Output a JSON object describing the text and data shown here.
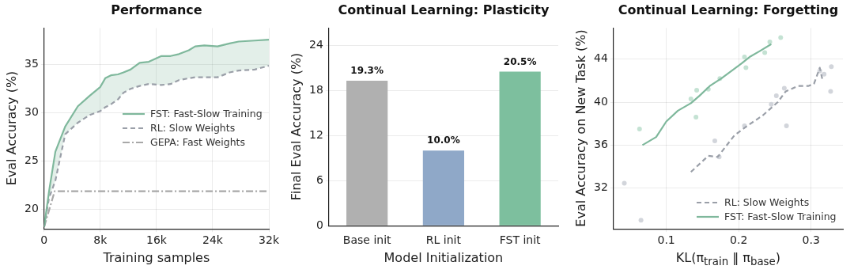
{
  "chart_data": [
    {
      "type": "line",
      "title": "Performance",
      "xlabel": "Training samples",
      "ylabel": "Eval Accuracy (%)",
      "xlim": [
        0,
        32000
      ],
      "ylim": [
        18,
        38.8
      ],
      "xticks": [
        0,
        {
          "value": 8000,
          "label": "8k"
        },
        {
          "value": 16000,
          "label": "16k"
        },
        {
          "value": 24000,
          "label": "24k"
        },
        {
          "value": 32000,
          "label": "32k"
        }
      ],
      "yticks": [
        20,
        25,
        30,
        35
      ],
      "grid": true,
      "legend": "right",
      "marker": "none",
      "series": [
        {
          "name": "FST: Fast-Slow Training",
          "color": "#7fb89c",
          "line_style": "solid",
          "x": [
            0,
            700,
            1600,
            3000,
            4800,
            6500,
            8000,
            8700,
            9500,
            10500,
            11300,
            12300,
            13600,
            14900,
            16700,
            18000,
            19200,
            20600,
            21500,
            22800,
            24700,
            26400,
            27700,
            30000,
            32000
          ],
          "values": [
            18.2,
            21.9,
            26.0,
            28.6,
            30.7,
            31.8,
            32.7,
            33.6,
            33.9,
            34.0,
            34.2,
            34.5,
            35.2,
            35.3,
            35.9,
            35.9,
            36.1,
            36.5,
            36.9,
            37.0,
            36.9,
            37.2,
            37.4,
            37.5,
            37.6
          ],
          "lower": [
            18.2,
            21.2,
            23.0,
            27.8,
            29.0,
            29.8,
            30.2,
            30.6,
            30.9,
            31.4,
            32.1,
            32.5,
            32.8,
            33.0,
            32.9,
            33.0,
            33.4,
            33.6,
            33.7,
            33.7,
            33.7,
            34.2,
            34.4,
            34.5,
            34.9
          ],
          "upper": [
            18.2,
            21.9,
            26.0,
            28.6,
            30.7,
            31.8,
            32.7,
            33.6,
            33.9,
            34.0,
            34.2,
            34.5,
            35.2,
            35.3,
            35.9,
            35.9,
            36.1,
            36.5,
            36.9,
            37.0,
            36.9,
            37.2,
            37.4,
            37.5,
            37.6
          ]
        },
        {
          "name": "RL: Slow Weights",
          "color": "#9a9fa8",
          "line_style": "dashed",
          "x": [
            0,
            700,
            1600,
            3000,
            4800,
            6500,
            8000,
            8700,
            9500,
            10500,
            11300,
            12300,
            13600,
            14900,
            16700,
            18000,
            19200,
            20600,
            21500,
            22800,
            24700,
            26400,
            27700,
            30000,
            32000
          ],
          "values": [
            18.2,
            21.2,
            23.0,
            27.8,
            29.0,
            29.8,
            30.2,
            30.6,
            30.9,
            31.4,
            32.1,
            32.5,
            32.8,
            33.0,
            32.9,
            33.0,
            33.4,
            33.6,
            33.7,
            33.7,
            33.7,
            34.2,
            34.4,
            34.5,
            34.9
          ]
        },
        {
          "name": "GEPA: Fast Weights",
          "color": "#a8a8a8",
          "line_style": "dashdot",
          "x": [
            0,
            1500,
            32000
          ],
          "values": [
            18.2,
            21.9,
            21.9
          ]
        }
      ]
    },
    {
      "type": "bar",
      "title": "Continual Learning: Plasticity",
      "xlabel": "Model Initialization",
      "ylabel": "Final Eval Accuracy (%)",
      "categories": [
        "Base init",
        "RL init",
        "FST init"
      ],
      "values": [
        19.3,
        10.0,
        20.5
      ],
      "colors": [
        "#b0b0b0",
        "#8fa8c8",
        "#7dbf9e"
      ],
      "value_labels": [
        "19.3%",
        "10.0%",
        "20.5%"
      ],
      "ylim": [
        0,
        26.3
      ],
      "yticks": [
        0,
        6,
        12,
        18,
        24
      ],
      "grid": "y"
    },
    {
      "type": "line",
      "title": "Continual Learning: Forgetting",
      "xlabel": "KL(π$_{train}$ ‖ π$_{base}$)",
      "ylabel": "Eval Accuracy on New Task (%)",
      "xlim": [
        0.027,
        0.344
      ],
      "ylim": [
        28.2,
        46.9
      ],
      "xticks": [
        0.1,
        0.2,
        0.3
      ],
      "yticks": [
        32,
        36,
        40,
        44
      ],
      "grid": true,
      "legend": "bottom right",
      "series": [
        {
          "name": "RL: Slow Weights",
          "color": "#9a9fa8",
          "line_style": "dashed",
          "marker": "none",
          "x": [
            0.134,
            0.158,
            0.171,
            0.194,
            0.212,
            0.233,
            0.254,
            0.265,
            0.272,
            0.282,
            0.296,
            0.304,
            0.312,
            0.316
          ],
          "values": [
            33.5,
            35.0,
            34.9,
            36.9,
            37.8,
            38.75,
            40.0,
            41.0,
            41.2,
            41.5,
            41.5,
            41.7,
            43.2,
            42.0
          ]
        },
        {
          "name": "FST: Fast-Slow Training",
          "color": "#7fb89c",
          "line_style": "solid",
          "marker": "none",
          "x": [
            0.067,
            0.086,
            0.1,
            0.116,
            0.134,
            0.146,
            0.16,
            0.176,
            0.19,
            0.204,
            0.215,
            0.229,
            0.245
          ],
          "values": [
            36.0,
            36.75,
            38.2,
            39.2,
            39.9,
            40.6,
            41.5,
            42.2,
            42.9,
            43.6,
            44.2,
            44.75,
            45.4
          ]
        },
        {
          "type": "scatter",
          "marker": "circle",
          "color": "#c4e2d3",
          "x": [
            0.063,
            0.134,
            0.141,
            0.142,
            0.158,
            0.174,
            0.208,
            0.21,
            0.236,
            0.243,
            0.258
          ],
          "values": [
            37.5,
            40.3,
            38.6,
            41.1,
            41.2,
            42.2,
            44.2,
            43.2,
            44.6,
            45.6,
            46.0
          ]
        },
        {
          "type": "scatter",
          "marker": "circle",
          "color": "#d2d5db",
          "x": [
            0.042,
            0.065,
            0.167,
            0.173,
            0.208,
            0.245,
            0.252,
            0.263,
            0.266,
            0.312,
            0.328,
            0.327,
            0.318
          ],
          "values": [
            32.45,
            29.0,
            36.4,
            34.9,
            37.8,
            39.8,
            40.6,
            41.3,
            37.8,
            42.9,
            43.3,
            41.0,
            42.6
          ]
        }
      ]
    }
  ]
}
